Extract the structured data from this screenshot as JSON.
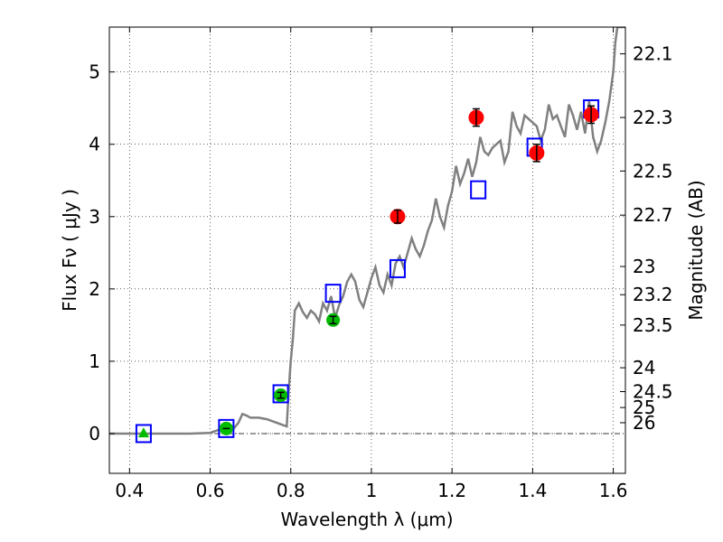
{
  "chart_data": {
    "type": "scatter",
    "xlabel": "Wavelength  λ (μm)",
    "ylabel": "Flux  Fν  ( μJy )",
    "y2label": "Magnitude (AB)",
    "xlim": [
      0.35,
      1.63
    ],
    "ylim": [
      -0.55,
      5.62
    ],
    "grid": true,
    "x_ticks": [
      {
        "v": 0.4,
        "label": "0.4"
      },
      {
        "v": 0.6,
        "label": "0.6"
      },
      {
        "v": 0.8,
        "label": "0.8"
      },
      {
        "v": 1.0,
        "label": "1"
      },
      {
        "v": 1.2,
        "label": "1.2"
      },
      {
        "v": 1.4,
        "label": "1.4"
      },
      {
        "v": 1.6,
        "label": "1.6"
      }
    ],
    "y_ticks": [
      {
        "v": 0,
        "label": "0"
      },
      {
        "v": 1,
        "label": "1"
      },
      {
        "v": 2,
        "label": "2"
      },
      {
        "v": 3,
        "label": "3"
      },
      {
        "v": 4,
        "label": "4"
      },
      {
        "v": 5,
        "label": "5"
      }
    ],
    "y2_ticks": [
      {
        "flux": 5.25,
        "label": "22.1"
      },
      {
        "flux": 4.37,
        "label": "22.3"
      },
      {
        "flux": 3.63,
        "label": "22.5"
      },
      {
        "flux": 3.02,
        "label": "22.7"
      },
      {
        "flux": 2.31,
        "label": "23"
      },
      {
        "flux": 1.92,
        "label": "23.2"
      },
      {
        "flux": 1.5,
        "label": "23.5"
      },
      {
        "flux": 0.91,
        "label": "24"
      },
      {
        "flux": 0.58,
        "label": "24.5"
      },
      {
        "flux": 0.36,
        "label": "25"
      },
      {
        "flux": 0.15,
        "label": "26"
      }
    ],
    "series": [
      {
        "kind": "model_curve",
        "color": "#808080",
        "x": [
          0.35,
          0.45,
          0.55,
          0.6,
          0.62,
          0.635,
          0.645,
          0.66,
          0.67,
          0.68,
          0.69,
          0.7,
          0.72,
          0.74,
          0.76,
          0.78,
          0.79,
          0.795,
          0.8,
          0.805,
          0.81,
          0.82,
          0.83,
          0.84,
          0.85,
          0.86,
          0.87,
          0.88,
          0.89,
          0.9,
          0.91,
          0.92,
          0.93,
          0.94,
          0.95,
          0.96,
          0.97,
          0.98,
          0.99,
          1.0,
          1.01,
          1.02,
          1.03,
          1.04,
          1.05,
          1.06,
          1.07,
          1.08,
          1.09,
          1.1,
          1.11,
          1.12,
          1.13,
          1.14,
          1.15,
          1.16,
          1.17,
          1.18,
          1.19,
          1.2,
          1.21,
          1.22,
          1.23,
          1.24,
          1.25,
          1.26,
          1.27,
          1.28,
          1.29,
          1.3,
          1.31,
          1.32,
          1.33,
          1.34,
          1.35,
          1.36,
          1.37,
          1.38,
          1.39,
          1.4,
          1.41,
          1.42,
          1.43,
          1.44,
          1.45,
          1.46,
          1.47,
          1.48,
          1.49,
          1.5,
          1.51,
          1.52,
          1.53,
          1.54,
          1.55,
          1.56,
          1.57,
          1.58,
          1.59,
          1.6,
          1.605,
          1.61,
          1.615,
          1.62,
          1.63
        ],
        "y": [
          0.0,
          0.0,
          0.0,
          0.01,
          0.05,
          0.08,
          0.1,
          0.08,
          0.15,
          0.27,
          0.25,
          0.22,
          0.22,
          0.2,
          0.16,
          0.12,
          0.1,
          0.6,
          1.0,
          1.3,
          1.7,
          1.8,
          1.68,
          1.6,
          1.7,
          1.65,
          1.55,
          1.8,
          1.7,
          1.9,
          1.6,
          1.78,
          1.9,
          2.1,
          2.2,
          2.1,
          1.85,
          1.75,
          1.95,
          2.15,
          2.3,
          2.05,
          1.95,
          2.2,
          2.05,
          2.35,
          2.45,
          2.3,
          2.5,
          2.7,
          2.55,
          2.45,
          2.6,
          2.8,
          2.95,
          3.25,
          3.0,
          2.85,
          3.15,
          3.35,
          3.7,
          3.45,
          3.6,
          3.8,
          3.55,
          3.75,
          4.1,
          3.9,
          3.85,
          3.95,
          4.0,
          4.05,
          3.75,
          3.9,
          4.45,
          4.25,
          4.15,
          4.4,
          4.35,
          4.3,
          4.25,
          4.05,
          4.2,
          4.55,
          4.35,
          4.4,
          4.25,
          4.1,
          4.55,
          4.4,
          4.2,
          4.45,
          4.15,
          4.6,
          4.1,
          3.9,
          4.05,
          4.3,
          4.6,
          5.0,
          5.4,
          5.62,
          5.62,
          5.62,
          5.62
        ]
      },
      {
        "kind": "model_photometry",
        "marker": "open-square",
        "color": "#0000ff",
        "x": [
          0.435,
          0.64,
          0.775,
          0.905,
          1.065,
          1.265,
          1.405,
          1.545
        ],
        "y": [
          0.0,
          0.07,
          0.55,
          1.94,
          2.28,
          3.37,
          3.96,
          4.49
        ]
      },
      {
        "kind": "observed_optical",
        "marker": "filled-circle",
        "color": "#00bb00",
        "x": [
          0.435,
          0.64,
          0.775,
          0.905
        ],
        "y": [
          0.01,
          0.07,
          0.53,
          1.57
        ],
        "err": [
          0.0,
          0.0,
          0.04,
          0.05
        ],
        "first_marker": "filled-triangle"
      },
      {
        "kind": "observed_nir",
        "marker": "filled-circle",
        "color": "#ff0000",
        "x": [
          1.065,
          1.26,
          1.41,
          1.545
        ],
        "y": [
          3.0,
          4.37,
          3.88,
          4.41
        ],
        "err": [
          0.09,
          0.12,
          0.12,
          0.12
        ]
      }
    ]
  }
}
